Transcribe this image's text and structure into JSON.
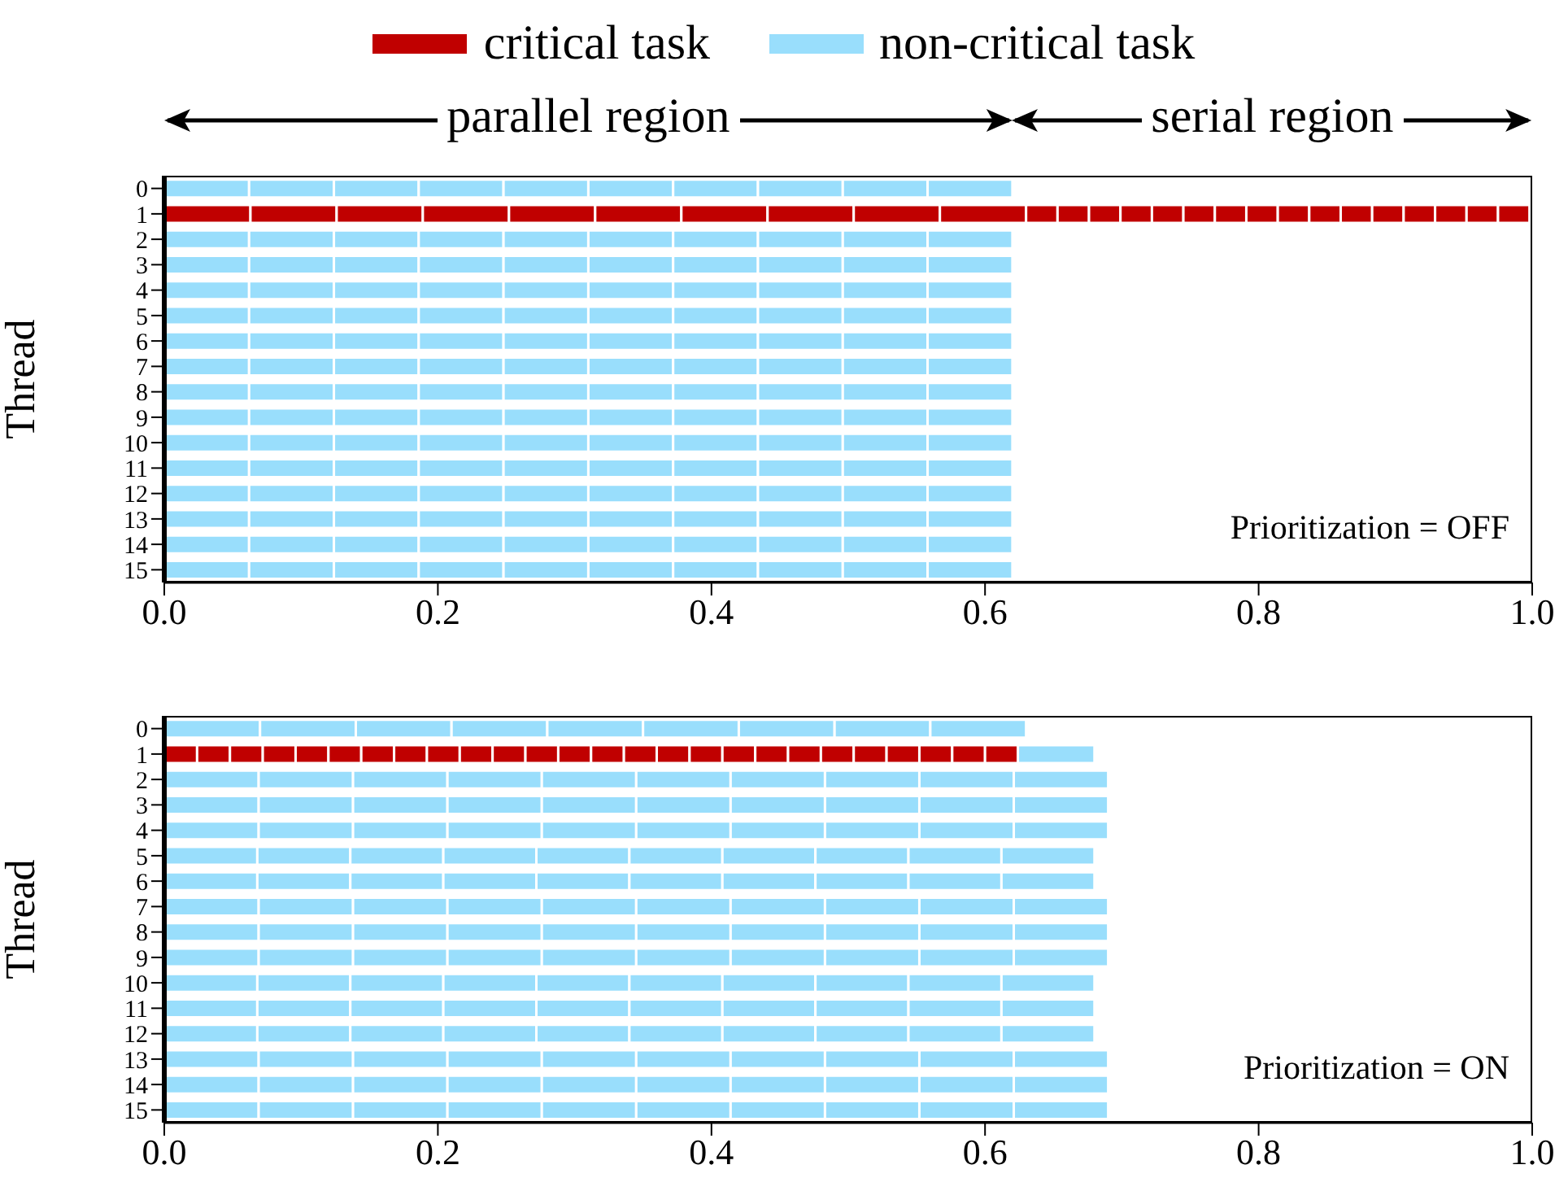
{
  "chart_data": [
    {
      "type": "bar",
      "orientation": "horizontal",
      "stacked": true,
      "ylabel": "Thread",
      "categories": [
        "0",
        "1",
        "2",
        "3",
        "4",
        "5",
        "6",
        "7",
        "8",
        "9",
        "10",
        "11",
        "12",
        "13",
        "14",
        "15"
      ],
      "xlim": [
        0,
        1
      ],
      "xticks": [
        {
          "value": 0,
          "label": "0.0"
        },
        {
          "value": 0.2,
          "label": "0.2"
        },
        {
          "value": 0.4,
          "label": "0.4"
        },
        {
          "value": 0.6,
          "label": "0.6"
        },
        {
          "value": 0.8,
          "label": "0.8"
        },
        {
          "value": 1,
          "label": "1.0"
        }
      ],
      "legend": "top",
      "annotations": [
        "parallel region",
        "serial region",
        "Prioritization = OFF"
      ],
      "series": [
        {
          "name": "critical task",
          "color": "#c00000",
          "values": [
            null,
            0.063,
            null,
            null,
            null,
            null,
            null,
            null,
            null,
            null,
            null,
            null,
            null,
            null,
            null,
            null
          ]
        },
        {
          "color": "#c00000",
          "values": [
            null,
            0.063,
            null,
            null,
            null,
            null,
            null,
            null,
            null,
            null,
            null,
            null,
            null,
            null,
            null,
            null
          ]
        },
        {
          "color": "#c00000",
          "values": [
            null,
            0.063,
            null,
            null,
            null,
            null,
            null,
            null,
            null,
            null,
            null,
            null,
            null,
            null,
            null,
            null
          ]
        },
        {
          "color": "#c00000",
          "values": [
            null,
            0.063,
            null,
            null,
            null,
            null,
            null,
            null,
            null,
            null,
            null,
            null,
            null,
            null,
            null,
            null
          ]
        },
        {
          "color": "#c00000",
          "values": [
            null,
            0.063,
            null,
            null,
            null,
            null,
            null,
            null,
            null,
            null,
            null,
            null,
            null,
            null,
            null,
            null
          ]
        },
        {
          "color": "#c00000",
          "values": [
            null,
            0.063,
            null,
            null,
            null,
            null,
            null,
            null,
            null,
            null,
            null,
            null,
            null,
            null,
            null,
            null
          ]
        },
        {
          "color": "#c00000",
          "values": [
            null,
            0.063,
            null,
            null,
            null,
            null,
            null,
            null,
            null,
            null,
            null,
            null,
            null,
            null,
            null,
            null
          ]
        },
        {
          "color": "#c00000",
          "values": [
            null,
            0.063,
            null,
            null,
            null,
            null,
            null,
            null,
            null,
            null,
            null,
            null,
            null,
            null,
            null,
            null
          ]
        },
        {
          "color": "#c00000",
          "values": [
            null,
            0.063,
            null,
            null,
            null,
            null,
            null,
            null,
            null,
            null,
            null,
            null,
            null,
            null,
            null,
            null
          ]
        },
        {
          "color": "#c00000",
          "values": [
            null,
            0.063,
            null,
            null,
            null,
            null,
            null,
            null,
            null,
            null,
            null,
            null,
            null,
            null,
            null,
            null
          ]
        },
        {
          "color": "#c00000",
          "values": [
            null,
            0.023,
            null,
            null,
            null,
            null,
            null,
            null,
            null,
            null,
            null,
            null,
            null,
            null,
            null,
            null
          ]
        },
        {
          "color": "#c00000",
          "values": [
            null,
            0.023,
            null,
            null,
            null,
            null,
            null,
            null,
            null,
            null,
            null,
            null,
            null,
            null,
            null,
            null
          ]
        },
        {
          "color": "#c00000",
          "values": [
            null,
            0.023,
            null,
            null,
            null,
            null,
            null,
            null,
            null,
            null,
            null,
            null,
            null,
            null,
            null,
            null
          ]
        },
        {
          "color": "#c00000",
          "values": [
            null,
            0.023,
            null,
            null,
            null,
            null,
            null,
            null,
            null,
            null,
            null,
            null,
            null,
            null,
            null,
            null
          ]
        },
        {
          "color": "#c00000",
          "values": [
            null,
            0.023,
            null,
            null,
            null,
            null,
            null,
            null,
            null,
            null,
            null,
            null,
            null,
            null,
            null,
            null
          ]
        },
        {
          "color": "#c00000",
          "values": [
            null,
            0.023,
            null,
            null,
            null,
            null,
            null,
            null,
            null,
            null,
            null,
            null,
            null,
            null,
            null,
            null
          ]
        },
        {
          "color": "#c00000",
          "values": [
            null,
            0.023,
            null,
            null,
            null,
            null,
            null,
            null,
            null,
            null,
            null,
            null,
            null,
            null,
            null,
            null
          ]
        },
        {
          "color": "#c00000",
          "values": [
            null,
            0.023,
            null,
            null,
            null,
            null,
            null,
            null,
            null,
            null,
            null,
            null,
            null,
            null,
            null,
            null
          ]
        },
        {
          "color": "#c00000",
          "values": [
            null,
            0.023,
            null,
            null,
            null,
            null,
            null,
            null,
            null,
            null,
            null,
            null,
            null,
            null,
            null,
            null
          ]
        },
        {
          "color": "#c00000",
          "values": [
            null,
            0.023,
            null,
            null,
            null,
            null,
            null,
            null,
            null,
            null,
            null,
            null,
            null,
            null,
            null,
            null
          ]
        },
        {
          "color": "#c00000",
          "values": [
            null,
            0.023,
            null,
            null,
            null,
            null,
            null,
            null,
            null,
            null,
            null,
            null,
            null,
            null,
            null,
            null
          ]
        },
        {
          "color": "#c00000",
          "values": [
            null,
            0.023,
            null,
            null,
            null,
            null,
            null,
            null,
            null,
            null,
            null,
            null,
            null,
            null,
            null,
            null
          ]
        },
        {
          "color": "#c00000",
          "values": [
            null,
            0.023,
            null,
            null,
            null,
            null,
            null,
            null,
            null,
            null,
            null,
            null,
            null,
            null,
            null,
            null
          ]
        },
        {
          "color": "#c00000",
          "values": [
            null,
            0.023,
            null,
            null,
            null,
            null,
            null,
            null,
            null,
            null,
            null,
            null,
            null,
            null,
            null,
            null
          ]
        },
        {
          "color": "#c00000",
          "values": [
            null,
            0.023,
            null,
            null,
            null,
            null,
            null,
            null,
            null,
            null,
            null,
            null,
            null,
            null,
            null,
            null
          ]
        },
        {
          "color": "#c00000",
          "values": [
            null,
            0.023,
            null,
            null,
            null,
            null,
            null,
            null,
            null,
            null,
            null,
            null,
            null,
            null,
            null,
            null
          ]
        },
        {
          "name": "non-critical task",
          "color": "#99defc",
          "values": [
            0.062,
            null,
            0.062,
            0.062,
            0.062,
            0.062,
            0.062,
            0.062,
            0.062,
            0.062,
            0.062,
            0.062,
            0.062,
            0.062,
            0.062,
            0.062
          ]
        },
        {
          "color": "#99defc",
          "values": [
            0.062,
            null,
            0.062,
            0.062,
            0.062,
            0.062,
            0.062,
            0.062,
            0.062,
            0.062,
            0.062,
            0.062,
            0.062,
            0.062,
            0.062,
            0.062
          ]
        },
        {
          "color": "#99defc",
          "values": [
            0.062,
            null,
            0.062,
            0.062,
            0.062,
            0.062,
            0.062,
            0.062,
            0.062,
            0.062,
            0.062,
            0.062,
            0.062,
            0.062,
            0.062,
            0.062
          ]
        },
        {
          "color": "#99defc",
          "values": [
            0.062,
            null,
            0.062,
            0.062,
            0.062,
            0.062,
            0.062,
            0.062,
            0.062,
            0.062,
            0.062,
            0.062,
            0.062,
            0.062,
            0.062,
            0.062
          ]
        },
        {
          "color": "#99defc",
          "values": [
            0.062,
            null,
            0.062,
            0.062,
            0.062,
            0.062,
            0.062,
            0.062,
            0.062,
            0.062,
            0.062,
            0.062,
            0.062,
            0.062,
            0.062,
            0.062
          ]
        },
        {
          "color": "#99defc",
          "values": [
            0.062,
            null,
            0.062,
            0.062,
            0.062,
            0.062,
            0.062,
            0.062,
            0.062,
            0.062,
            0.062,
            0.062,
            0.062,
            0.062,
            0.062,
            0.062
          ]
        },
        {
          "color": "#99defc",
          "values": [
            0.062,
            null,
            0.062,
            0.062,
            0.062,
            0.062,
            0.062,
            0.062,
            0.062,
            0.062,
            0.062,
            0.062,
            0.062,
            0.062,
            0.062,
            0.062
          ]
        },
        {
          "color": "#99defc",
          "values": [
            0.062,
            null,
            0.062,
            0.062,
            0.062,
            0.062,
            0.062,
            0.062,
            0.062,
            0.062,
            0.062,
            0.062,
            0.062,
            0.062,
            0.062,
            0.062
          ]
        },
        {
          "color": "#99defc",
          "values": [
            0.062,
            null,
            0.062,
            0.062,
            0.062,
            0.062,
            0.062,
            0.062,
            0.062,
            0.062,
            0.062,
            0.062,
            0.062,
            0.062,
            0.062,
            0.062
          ]
        },
        {
          "color": "#99defc",
          "values": [
            0.062,
            null,
            0.062,
            0.062,
            0.062,
            0.062,
            0.062,
            0.062,
            0.062,
            0.062,
            0.062,
            0.062,
            0.062,
            0.062,
            0.062,
            0.062
          ]
        }
      ]
    },
    {
      "type": "bar",
      "orientation": "horizontal",
      "stacked": true,
      "ylabel": "Thread",
      "categories": [
        "0",
        "1",
        "2",
        "3",
        "4",
        "5",
        "6",
        "7",
        "8",
        "9",
        "10",
        "11",
        "12",
        "13",
        "14",
        "15"
      ],
      "xlim": [
        0,
        1
      ],
      "xticks": [
        {
          "value": 0,
          "label": "0.0"
        },
        {
          "value": 0.2,
          "label": "0.2"
        },
        {
          "value": 0.4,
          "label": "0.4"
        },
        {
          "value": 0.6,
          "label": "0.6"
        },
        {
          "value": 0.8,
          "label": "0.8"
        },
        {
          "value": 1,
          "label": "1.0"
        }
      ],
      "annotations": [
        "Prioritization = ON"
      ],
      "series": [
        {
          "color": "#c00000",
          "values": [
            null,
            0.024,
            null,
            null,
            null,
            null,
            null,
            null,
            null,
            null,
            null,
            null,
            null,
            null,
            null,
            null
          ]
        },
        {
          "color": "#c00000",
          "values": [
            null,
            0.024,
            null,
            null,
            null,
            null,
            null,
            null,
            null,
            null,
            null,
            null,
            null,
            null,
            null,
            null
          ]
        },
        {
          "color": "#c00000",
          "values": [
            null,
            0.024,
            null,
            null,
            null,
            null,
            null,
            null,
            null,
            null,
            null,
            null,
            null,
            null,
            null,
            null
          ]
        },
        {
          "color": "#c00000",
          "values": [
            null,
            0.024,
            null,
            null,
            null,
            null,
            null,
            null,
            null,
            null,
            null,
            null,
            null,
            null,
            null,
            null
          ]
        },
        {
          "color": "#c00000",
          "values": [
            null,
            0.024,
            null,
            null,
            null,
            null,
            null,
            null,
            null,
            null,
            null,
            null,
            null,
            null,
            null,
            null
          ]
        },
        {
          "color": "#c00000",
          "values": [
            null,
            0.024,
            null,
            null,
            null,
            null,
            null,
            null,
            null,
            null,
            null,
            null,
            null,
            null,
            null,
            null
          ]
        },
        {
          "color": "#c00000",
          "values": [
            null,
            0.024,
            null,
            null,
            null,
            null,
            null,
            null,
            null,
            null,
            null,
            null,
            null,
            null,
            null,
            null
          ]
        },
        {
          "color": "#c00000",
          "values": [
            null,
            0.024,
            null,
            null,
            null,
            null,
            null,
            null,
            null,
            null,
            null,
            null,
            null,
            null,
            null,
            null
          ]
        },
        {
          "color": "#c00000",
          "values": [
            null,
            0.024,
            null,
            null,
            null,
            null,
            null,
            null,
            null,
            null,
            null,
            null,
            null,
            null,
            null,
            null
          ]
        },
        {
          "color": "#c00000",
          "values": [
            null,
            0.024,
            null,
            null,
            null,
            null,
            null,
            null,
            null,
            null,
            null,
            null,
            null,
            null,
            null,
            null
          ]
        },
        {
          "color": "#c00000",
          "values": [
            null,
            0.024,
            null,
            null,
            null,
            null,
            null,
            null,
            null,
            null,
            null,
            null,
            null,
            null,
            null,
            null
          ]
        },
        {
          "color": "#c00000",
          "values": [
            null,
            0.024,
            null,
            null,
            null,
            null,
            null,
            null,
            null,
            null,
            null,
            null,
            null,
            null,
            null,
            null
          ]
        },
        {
          "color": "#c00000",
          "values": [
            null,
            0.024,
            null,
            null,
            null,
            null,
            null,
            null,
            null,
            null,
            null,
            null,
            null,
            null,
            null,
            null
          ]
        },
        {
          "color": "#c00000",
          "values": [
            null,
            0.024,
            null,
            null,
            null,
            null,
            null,
            null,
            null,
            null,
            null,
            null,
            null,
            null,
            null,
            null
          ]
        },
        {
          "color": "#c00000",
          "values": [
            null,
            0.024,
            null,
            null,
            null,
            null,
            null,
            null,
            null,
            null,
            null,
            null,
            null,
            null,
            null,
            null
          ]
        },
        {
          "color": "#c00000",
          "values": [
            null,
            0.024,
            null,
            null,
            null,
            null,
            null,
            null,
            null,
            null,
            null,
            null,
            null,
            null,
            null,
            null
          ]
        },
        {
          "color": "#c00000",
          "values": [
            null,
            0.024,
            null,
            null,
            null,
            null,
            null,
            null,
            null,
            null,
            null,
            null,
            null,
            null,
            null,
            null
          ]
        },
        {
          "color": "#c00000",
          "values": [
            null,
            0.024,
            null,
            null,
            null,
            null,
            null,
            null,
            null,
            null,
            null,
            null,
            null,
            null,
            null,
            null
          ]
        },
        {
          "color": "#c00000",
          "values": [
            null,
            0.024,
            null,
            null,
            null,
            null,
            null,
            null,
            null,
            null,
            null,
            null,
            null,
            null,
            null,
            null
          ]
        },
        {
          "color": "#c00000",
          "values": [
            null,
            0.024,
            null,
            null,
            null,
            null,
            null,
            null,
            null,
            null,
            null,
            null,
            null,
            null,
            null,
            null
          ]
        },
        {
          "color": "#c00000",
          "values": [
            null,
            0.024,
            null,
            null,
            null,
            null,
            null,
            null,
            null,
            null,
            null,
            null,
            null,
            null,
            null,
            null
          ]
        },
        {
          "color": "#c00000",
          "values": [
            null,
            0.024,
            null,
            null,
            null,
            null,
            null,
            null,
            null,
            null,
            null,
            null,
            null,
            null,
            null,
            null
          ]
        },
        {
          "color": "#c00000",
          "values": [
            null,
            0.024,
            null,
            null,
            null,
            null,
            null,
            null,
            null,
            null,
            null,
            null,
            null,
            null,
            null,
            null
          ]
        },
        {
          "color": "#c00000",
          "values": [
            null,
            0.024,
            null,
            null,
            null,
            null,
            null,
            null,
            null,
            null,
            null,
            null,
            null,
            null,
            null,
            null
          ]
        },
        {
          "color": "#c00000",
          "values": [
            null,
            0.024,
            null,
            null,
            null,
            null,
            null,
            null,
            null,
            null,
            null,
            null,
            null,
            null,
            null,
            null
          ]
        },
        {
          "color": "#c00000",
          "values": [
            null,
            0.024,
            null,
            null,
            null,
            null,
            null,
            null,
            null,
            null,
            null,
            null,
            null,
            null,
            null,
            null
          ]
        },
        {
          "color": "#99defc",
          "values": [
            0.07,
            0.056,
            0.069,
            0.069,
            0.069,
            0.068,
            0.068,
            0.069,
            0.069,
            0.069,
            0.068,
            0.068,
            0.068,
            0.069,
            0.069,
            0.069
          ]
        },
        {
          "color": "#99defc",
          "values": [
            0.07,
            null,
            0.069,
            0.069,
            0.069,
            0.068,
            0.068,
            0.069,
            0.069,
            0.069,
            0.068,
            0.068,
            0.068,
            0.069,
            0.069,
            0.069
          ]
        },
        {
          "color": "#99defc",
          "values": [
            0.07,
            null,
            0.069,
            0.069,
            0.069,
            0.068,
            0.068,
            0.069,
            0.069,
            0.069,
            0.068,
            0.068,
            0.068,
            0.069,
            0.069,
            0.069
          ]
        },
        {
          "color": "#99defc",
          "values": [
            0.07,
            null,
            0.069,
            0.069,
            0.069,
            0.068,
            0.068,
            0.069,
            0.069,
            0.069,
            0.068,
            0.068,
            0.068,
            0.069,
            0.069,
            0.069
          ]
        },
        {
          "color": "#99defc",
          "values": [
            0.07,
            null,
            0.069,
            0.069,
            0.069,
            0.068,
            0.068,
            0.069,
            0.069,
            0.069,
            0.068,
            0.068,
            0.068,
            0.069,
            0.069,
            0.069
          ]
        },
        {
          "color": "#99defc",
          "values": [
            0.07,
            null,
            0.069,
            0.069,
            0.069,
            0.068,
            0.068,
            0.069,
            0.069,
            0.069,
            0.068,
            0.068,
            0.068,
            0.069,
            0.069,
            0.069
          ]
        },
        {
          "color": "#99defc",
          "values": [
            0.07,
            null,
            0.069,
            0.069,
            0.069,
            0.068,
            0.068,
            0.069,
            0.069,
            0.069,
            0.068,
            0.068,
            0.068,
            0.069,
            0.069,
            0.069
          ]
        },
        {
          "color": "#99defc",
          "values": [
            0.07,
            null,
            0.069,
            0.069,
            0.069,
            0.068,
            0.068,
            0.069,
            0.069,
            0.069,
            0.068,
            0.068,
            0.068,
            0.069,
            0.069,
            0.069
          ]
        },
        {
          "color": "#99defc",
          "values": [
            0.07,
            null,
            0.069,
            0.069,
            0.069,
            0.068,
            0.068,
            0.069,
            0.069,
            0.069,
            0.068,
            0.068,
            0.068,
            0.069,
            0.069,
            0.069
          ]
        },
        {
          "color": "#99defc",
          "values": [
            null,
            null,
            0.069,
            0.069,
            0.069,
            0.068,
            0.068,
            0.069,
            0.069,
            0.069,
            0.068,
            0.068,
            0.068,
            0.069,
            0.069,
            0.069
          ]
        }
      ]
    }
  ]
}
